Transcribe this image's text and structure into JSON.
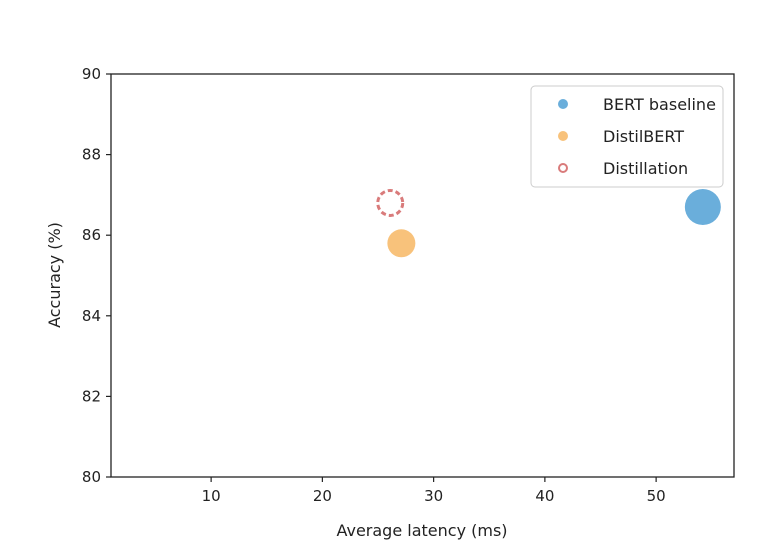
{
  "chart_data": {
    "type": "scatter",
    "xlabel": "Average latency (ms)",
    "ylabel": "Accuracy (%)",
    "xlim": [
      1,
      57
    ],
    "ylim": [
      80,
      90
    ],
    "xticks": [
      10,
      20,
      30,
      40,
      50
    ],
    "yticks": [
      80,
      82,
      84,
      86,
      88,
      90
    ],
    "grid": false,
    "legend_position": "top-right",
    "series": [
      {
        "name": "BERT baseline",
        "x": 54.2,
        "y": 86.7,
        "color": "#6aaedb",
        "style": "filled"
      },
      {
        "name": "DistilBERT",
        "x": 27.1,
        "y": 85.8,
        "color": "#f8c27b",
        "style": "filled"
      },
      {
        "name": "Distillation",
        "x": 26.1,
        "y": 86.8,
        "color": "#d97b7b",
        "style": "dashed-outline"
      }
    ]
  }
}
